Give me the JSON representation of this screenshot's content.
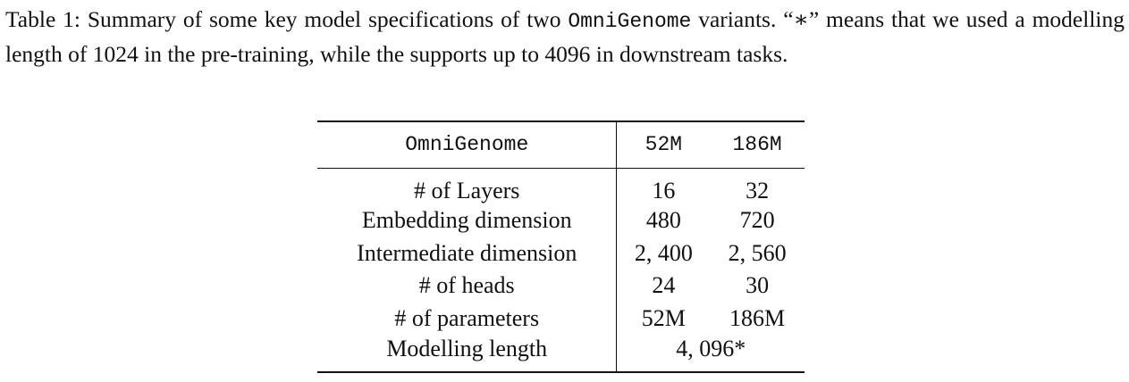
{
  "caption": {
    "label": "Table 1:",
    "text_before": " Summary of some key model specifications of two ",
    "model_name": "OmniGenome",
    "text_after": " variants. “∗” means that we used a modelling length of 1024 in the pre-training, while the supports up to 4096 in downstream tasks."
  },
  "table": {
    "header": {
      "model": "OmniGenome",
      "col1": "52M",
      "col2": "186M"
    },
    "rows": [
      {
        "label": "# of Layers",
        "v1": "16",
        "v2": "32"
      },
      {
        "label": "Embedding dimension",
        "v1": "480",
        "v2": "720"
      },
      {
        "label": "Intermediate dimension",
        "v1": "2, 400",
        "v2": "2, 560"
      },
      {
        "label": "# of heads",
        "v1": "24",
        "v2": "30"
      },
      {
        "label": "# of parameters",
        "v1": "52M",
        "v2": "186M"
      }
    ],
    "last_row": {
      "label": "Modelling length",
      "value": "4, 096*"
    }
  }
}
